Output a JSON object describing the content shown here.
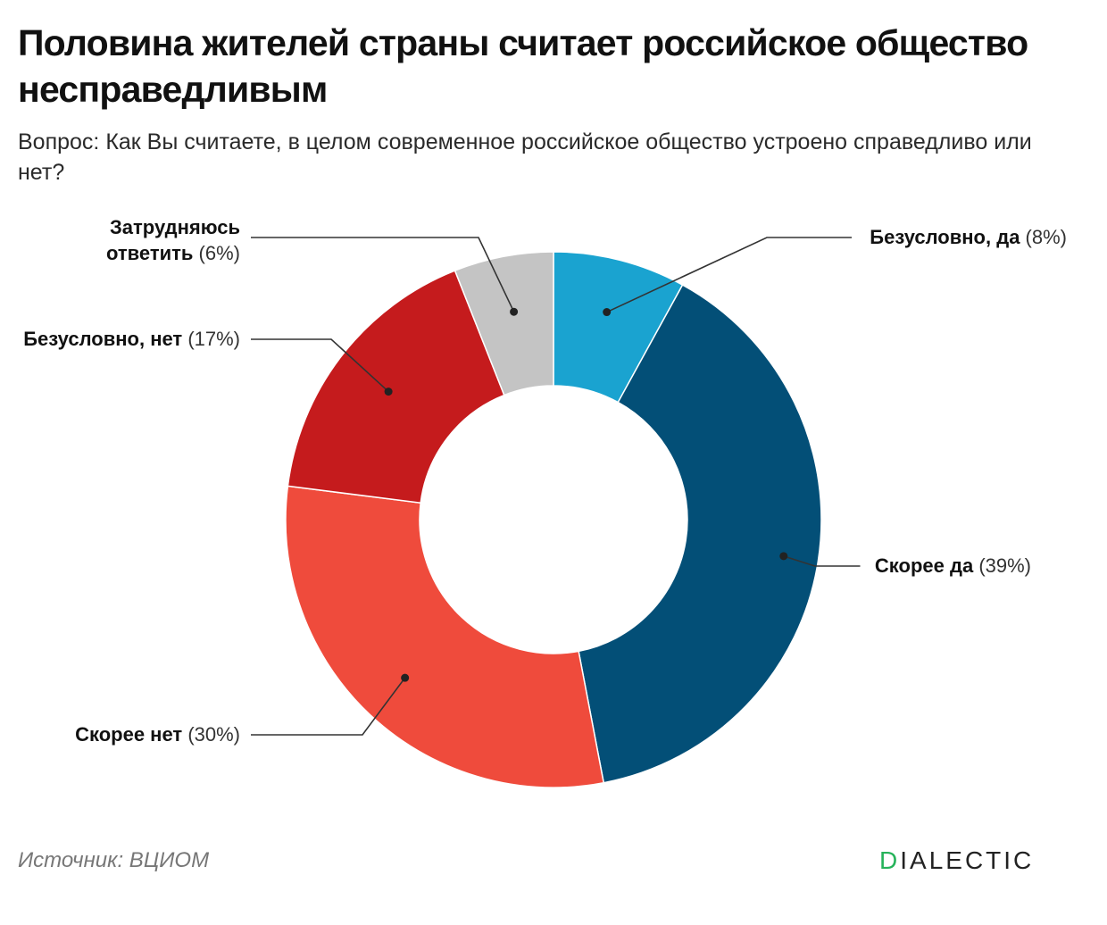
{
  "header": {
    "title": "Половина жителей страны считает российское общество несправедливым",
    "subtitle": "Вопрос: Как Вы считаете, в целом современное российское общество устроено справедливо или нет?"
  },
  "footer": {
    "source": "Источник: ВЦИОМ",
    "logo_first_letter": "D",
    "logo_rest": "IALECTIC"
  },
  "colors": {
    "logo_accent": "#26b35a"
  },
  "chart_data": {
    "type": "pie",
    "variant": "donut",
    "title": "Половина жителей страны считает российское общество несправедливым",
    "subtitle": "Вопрос: Как Вы считаете, в целом современное российское общество устроено справедливо или нет?",
    "unit": "%",
    "slices": [
      {
        "label": "Безусловно, да",
        "value": 8,
        "pct_text": "(8%)",
        "color": "#1aa3d0"
      },
      {
        "label": "Скорее да",
        "value": 39,
        "pct_text": "(39%)",
        "color": "#034f77"
      },
      {
        "label": "Скорее нет",
        "value": 30,
        "pct_text": "(30%)",
        "color": "#ef4b3c"
      },
      {
        "label": "Безусловно, нет",
        "value": 17,
        "pct_text": "(17%)",
        "color": "#c51b1d"
      },
      {
        "label": "Затрудняюсь ответить",
        "label_lines": [
          "Затрудняюсь",
          "ответить"
        ],
        "value": 6,
        "pct_text": "(6%)",
        "color": "#c4c4c4"
      }
    ]
  }
}
